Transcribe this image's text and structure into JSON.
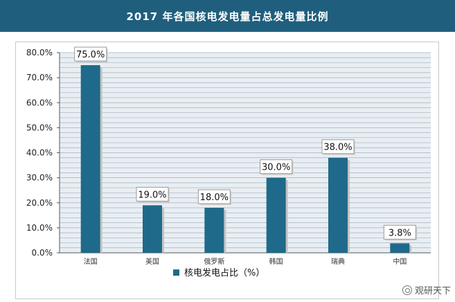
{
  "header": {
    "title": "2017 年各国核电发电量占总发电量比例"
  },
  "chart_data": {
    "type": "bar",
    "categories": [
      "法国",
      "美国",
      "俄罗斯",
      "韩国",
      "瑞典",
      "中国"
    ],
    "series": [
      {
        "name": "核电发电占比（%）",
        "values": [
          75.0,
          19.0,
          18.0,
          30.0,
          38.0,
          3.8
        ]
      }
    ],
    "data_labels": [
      "75.0%",
      "19.0%",
      "18.0%",
      "30.0%",
      "38.0%",
      "3.8%"
    ],
    "y_ticks": [
      "0.0%",
      "10.0%",
      "20.0%",
      "30.0%",
      "40.0%",
      "50.0%",
      "60.0%",
      "70.0%",
      "80.0%"
    ],
    "ylim": [
      0,
      80
    ],
    "grid": true,
    "legend_position": "bottom",
    "colors": {
      "bar": "#1f6a8a",
      "grid": "#9fb2c2",
      "plot_bg": "#e9eef3"
    }
  },
  "watermark": {
    "text": "观研天下"
  }
}
